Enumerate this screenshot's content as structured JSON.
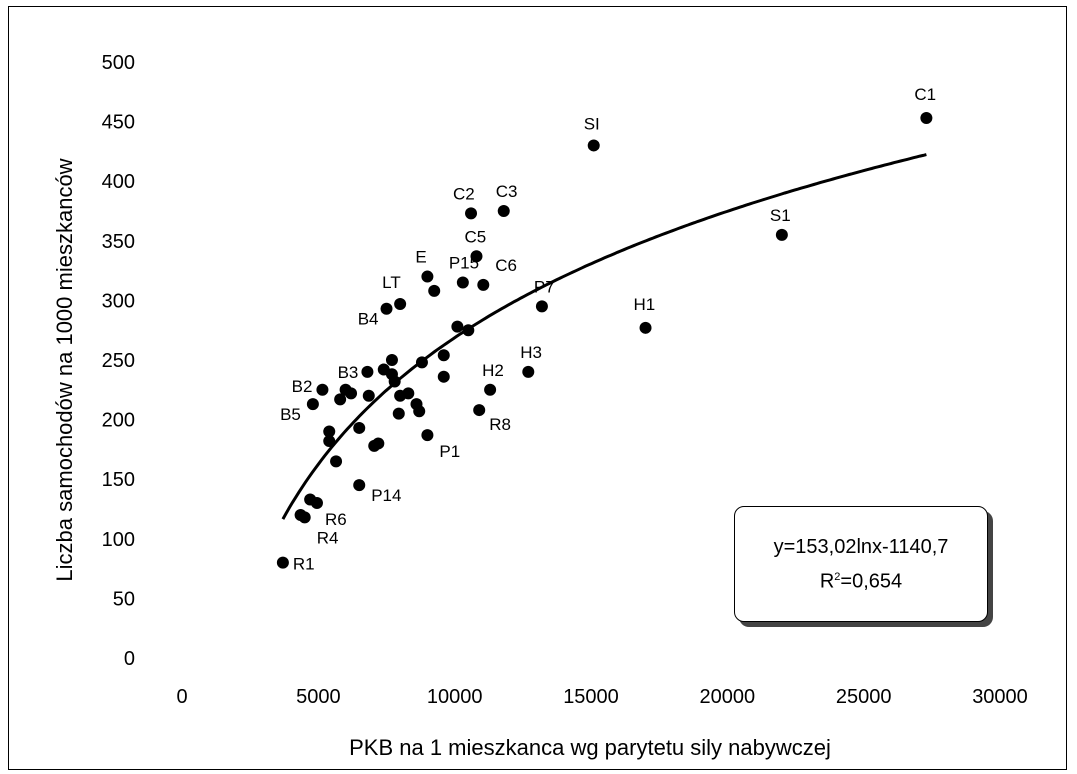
{
  "chart_data": {
    "type": "scatter",
    "xlabel": "PKB na 1 mieszkanca wg parytetu sily nabywczej",
    "ylabel": "Liczba samochodów na 1000 mieszkanców",
    "xlim": [
      0,
      30000
    ],
    "ylim": [
      0,
      500
    ],
    "xticks": [
      0,
      5000,
      10000,
      15000,
      20000,
      25000,
      30000
    ],
    "yticks": [
      0,
      50,
      100,
      150,
      200,
      250,
      300,
      350,
      400,
      450,
      500
    ],
    "grid": false,
    "points": [
      {
        "x": 3700,
        "y": 80,
        "label": "R1"
      },
      {
        "x": 4350,
        "y": 120,
        "label": ""
      },
      {
        "x": 4500,
        "y": 118,
        "label": "R4"
      },
      {
        "x": 4700,
        "y": 133,
        "label": ""
      },
      {
        "x": 4950,
        "y": 130,
        "label": "R6"
      },
      {
        "x": 4800,
        "y": 213,
        "label": "B5"
      },
      {
        "x": 5150,
        "y": 225,
        "label": "B2"
      },
      {
        "x": 5400,
        "y": 190,
        "label": ""
      },
      {
        "x": 5400,
        "y": 182,
        "label": ""
      },
      {
        "x": 5650,
        "y": 165,
        "label": ""
      },
      {
        "x": 5800,
        "y": 217,
        "label": ""
      },
      {
        "x": 6000,
        "y": 225,
        "label": "B3"
      },
      {
        "x": 6200,
        "y": 222,
        "label": ""
      },
      {
        "x": 6500,
        "y": 193,
        "label": ""
      },
      {
        "x": 6500,
        "y": 145,
        "label": "P14"
      },
      {
        "x": 6800,
        "y": 240,
        "label": ""
      },
      {
        "x": 6850,
        "y": 220,
        "label": ""
      },
      {
        "x": 7050,
        "y": 178,
        "label": ""
      },
      {
        "x": 7200,
        "y": 180,
        "label": ""
      },
      {
        "x": 7400,
        "y": 242,
        "label": ""
      },
      {
        "x": 7500,
        "y": 293,
        "label": "B4"
      },
      {
        "x": 7700,
        "y": 250,
        "label": ""
      },
      {
        "x": 7700,
        "y": 238,
        "label": ""
      },
      {
        "x": 7800,
        "y": 232,
        "label": ""
      },
      {
        "x": 7950,
        "y": 205,
        "label": ""
      },
      {
        "x": 8000,
        "y": 297,
        "label": "LT"
      },
      {
        "x": 8000,
        "y": 220,
        "label": ""
      },
      {
        "x": 8300,
        "y": 222,
        "label": ""
      },
      {
        "x": 8600,
        "y": 213,
        "label": ""
      },
      {
        "x": 8700,
        "y": 207,
        "label": ""
      },
      {
        "x": 8800,
        "y": 248,
        "label": ""
      },
      {
        "x": 9000,
        "y": 320,
        "label": "E"
      },
      {
        "x": 9000,
        "y": 187,
        "label": "P1"
      },
      {
        "x": 9250,
        "y": 308,
        "label": ""
      },
      {
        "x": 9600,
        "y": 254,
        "label": ""
      },
      {
        "x": 9600,
        "y": 236,
        "label": ""
      },
      {
        "x": 10100,
        "y": 278,
        "label": ""
      },
      {
        "x": 10300,
        "y": 315,
        "label": "P15"
      },
      {
        "x": 10500,
        "y": 275,
        "label": ""
      },
      {
        "x": 10600,
        "y": 373,
        "label": "C2"
      },
      {
        "x": 10800,
        "y": 337,
        "label": "C5"
      },
      {
        "x": 10900,
        "y": 208,
        "label": "R8"
      },
      {
        "x": 11050,
        "y": 313,
        "label": "C6"
      },
      {
        "x": 11300,
        "y": 225,
        "label": "H2"
      },
      {
        "x": 11800,
        "y": 375,
        "label": "C3"
      },
      {
        "x": 12700,
        "y": 240,
        "label": "H3"
      },
      {
        "x": 13200,
        "y": 295,
        "label": "P7"
      },
      {
        "x": 15100,
        "y": 430,
        "label": "SI"
      },
      {
        "x": 17000,
        "y": 277,
        "label": "H1"
      },
      {
        "x": 22000,
        "y": 355,
        "label": "S1"
      },
      {
        "x": 27300,
        "y": 453,
        "label": "C1"
      }
    ],
    "trendline": {
      "type": "logarithmic",
      "a": 153.02,
      "b": -1140.7,
      "x_range": [
        3700,
        27300
      ]
    },
    "annotation": {
      "equation": "y=153,02lnx-1140,7",
      "r2_prefix": "R",
      "r2_sup": "2",
      "r2_value": "=0,654"
    }
  }
}
